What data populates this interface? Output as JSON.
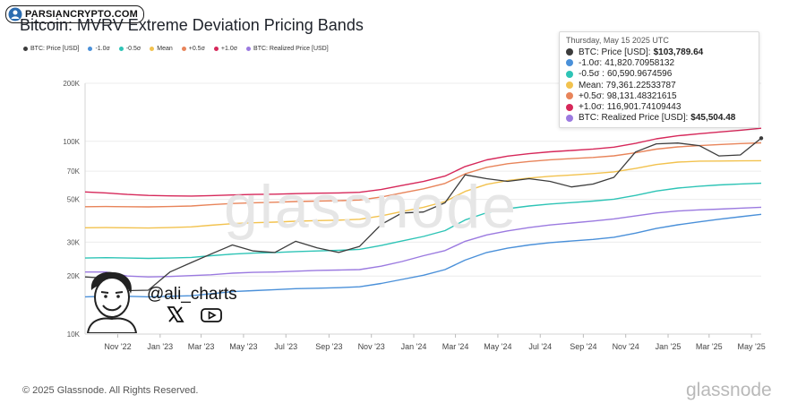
{
  "badge": {
    "text": "PARSIANCRYPTO.COM",
    "icon": "person-icon"
  },
  "header": {
    "title": "Bitcoin: MVRV Extreme Deviation Pricing Bands"
  },
  "tooltip": {
    "date": "Thursday, May 15 2025 UTC",
    "rows": [
      {
        "label": "BTC: Price [USD]:",
        "value": "$103,789.64",
        "color": "#3c3c3c"
      },
      {
        "label": "-1.0σ:",
        "value": "41,820.70958132",
        "color": "#4a90d9"
      },
      {
        "label": "-0.5σ :",
        "value": "60,590.9674596",
        "color": "#2ec4b6"
      },
      {
        "label": "Mean:",
        "value": "79,361.22533787",
        "color": "#f2c24e"
      },
      {
        "label": "+0.5σ:",
        "value": "98,131.48321615",
        "color": "#e8845a"
      },
      {
        "label": "+1.0σ:",
        "value": "116,901.74109443",
        "color": "#d6285a"
      },
      {
        "label": "BTC: Realized Price [USD]:",
        "value": "$45,504.48",
        "color": "#9b7ae0"
      }
    ]
  },
  "watermark": "glassnode",
  "author": {
    "handle": "@ali_charts"
  },
  "footer": {
    "copyright": "© 2025 Glassnode. All Rights Reserved.",
    "logo": "glassnode"
  },
  "chart_data": {
    "type": "line",
    "title": "Bitcoin: MVRV Extreme Deviation Pricing Bands",
    "yscale": "log",
    "ylim": [
      10000,
      200000
    ],
    "y_ticks": [
      10000,
      20000,
      30000,
      50000,
      70000,
      100000,
      200000
    ],
    "y_tick_labels": [
      "10K",
      "20K",
      "30K",
      "50K",
      "70K",
      "100K",
      "200K"
    ],
    "x_range": [
      "2022-09-15",
      "2025-05-15"
    ],
    "x_ticks": [
      "2022-11-01",
      "2023-01-01",
      "2023-03-01",
      "2023-05-01",
      "2023-07-01",
      "2023-09-01",
      "2023-11-01",
      "2024-01-01",
      "2024-03-01",
      "2024-05-01",
      "2024-07-01",
      "2024-09-01",
      "2024-11-01",
      "2025-01-01",
      "2025-03-01",
      "2025-05-01"
    ],
    "x_tick_labels": [
      "Nov '22",
      "Jan '23",
      "Mar '23",
      "May '23",
      "Jul '23",
      "Sep '23",
      "Nov '23",
      "Jan '24",
      "Mar '24",
      "May '24",
      "Jul '24",
      "Sep '24",
      "Nov '24",
      "Jan '25",
      "Mar '25",
      "May '25"
    ],
    "grid": {
      "x": false,
      "y": true
    },
    "legend": {
      "position": "top-left"
    },
    "x": [
      "2022-09-15",
      "2022-10-15",
      "2022-11-15",
      "2022-12-15",
      "2023-01-15",
      "2023-02-15",
      "2023-03-15",
      "2023-04-15",
      "2023-05-15",
      "2023-06-15",
      "2023-07-15",
      "2023-08-15",
      "2023-09-15",
      "2023-10-15",
      "2023-11-15",
      "2023-12-15",
      "2024-01-15",
      "2024-02-15",
      "2024-03-15",
      "2024-04-15",
      "2024-05-15",
      "2024-06-15",
      "2024-07-15",
      "2024-08-15",
      "2024-09-15",
      "2024-10-15",
      "2024-11-15",
      "2024-12-15",
      "2025-01-15",
      "2025-02-15",
      "2025-03-15",
      "2025-04-15",
      "2025-05-15"
    ],
    "series": [
      {
        "name": "BTC: Price [USD]",
        "color": "#3c3c3c",
        "values": [
          19800,
          19500,
          16800,
          16900,
          21000,
          23500,
          26000,
          29000,
          27000,
          26500,
          30300,
          28000,
          26500,
          28500,
          37000,
          42500,
          43000,
          48000,
          67000,
          64000,
          62000,
          64000,
          62000,
          58000,
          60000,
          65000,
          88000,
          97000,
          98000,
          95000,
          84000,
          85000,
          103789.64
        ]
      },
      {
        "name": "-1.0σ",
        "color": "#4a90d9",
        "values": [
          15600,
          15700,
          15700,
          15600,
          15700,
          15800,
          16200,
          16600,
          16800,
          17000,
          17200,
          17300,
          17400,
          17600,
          18300,
          19200,
          20200,
          21600,
          24200,
          26500,
          27900,
          29000,
          29800,
          30400,
          31000,
          31800,
          33400,
          35300,
          36900,
          38200,
          39400,
          40600,
          41820.71
        ]
      },
      {
        "name": "-0.5σ",
        "color": "#2ec4b6",
        "values": [
          24800,
          24900,
          24800,
          24700,
          24800,
          25000,
          25500,
          26000,
          26300,
          26500,
          26800,
          27000,
          27200,
          27500,
          28800,
          30400,
          32100,
          34400,
          39100,
          42600,
          44700,
          46200,
          47300,
          48100,
          49000,
          50100,
          52400,
          55200,
          57200,
          58500,
          59400,
          60100,
          60590.97
        ]
      },
      {
        "name": "Mean",
        "color": "#f2c24e",
        "values": [
          35600,
          35700,
          35600,
          35500,
          35700,
          36000,
          36700,
          37400,
          37800,
          38100,
          38500,
          38800,
          39000,
          39400,
          41000,
          43200,
          45500,
          48700,
          55000,
          59800,
          62600,
          64500,
          65900,
          66900,
          68000,
          69400,
          72300,
          75800,
          78000,
          78900,
          79000,
          79200,
          79361.23
        ]
      },
      {
        "name": "+0.5σ",
        "color": "#e8845a",
        "values": [
          45800,
          45900,
          45800,
          45700,
          45900,
          46200,
          46900,
          47600,
          48000,
          48300,
          48700,
          49000,
          49200,
          49600,
          51400,
          54000,
          56700,
          60500,
          67800,
          73300,
          76500,
          78600,
          80200,
          81300,
          82500,
          84100,
          87200,
          91100,
          93600,
          95000,
          96200,
          97300,
          98131.48
        ]
      },
      {
        "name": "+1.0σ",
        "color": "#d6285a",
        "values": [
          54600,
          54000,
          53000,
          52400,
          52100,
          52000,
          52300,
          52700,
          53000,
          53200,
          53500,
          53800,
          54000,
          54400,
          56200,
          59000,
          61900,
          66000,
          74000,
          80100,
          83800,
          86300,
          88200,
          89600,
          91200,
          93300,
          97600,
          103000,
          106800,
          109500,
          111700,
          114200,
          116901.74
        ]
      },
      {
        "name": "BTC: Realized Price [USD]",
        "color": "#9b7ae0",
        "values": [
          21000,
          21000,
          20000,
          19800,
          19900,
          20100,
          20300,
          20700,
          20900,
          21000,
          21200,
          21400,
          21500,
          21600,
          22500,
          23800,
          25500,
          27100,
          30300,
          32700,
          34300,
          35700,
          36800,
          37700,
          38600,
          39600,
          41000,
          42500,
          43500,
          44100,
          44500,
          45000,
          45504.48
        ]
      }
    ]
  }
}
